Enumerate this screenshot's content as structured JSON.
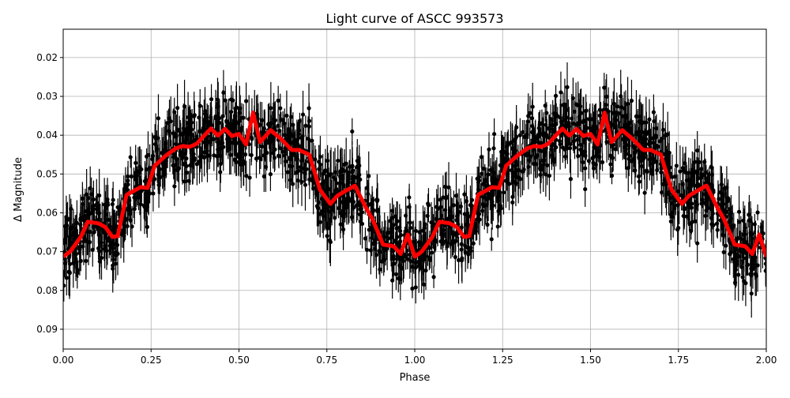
{
  "chart_data": {
    "type": "scatter",
    "title": "Light curve of ASCC 993573",
    "xlabel": "Phase",
    "ylabel": "Δ Magnitude",
    "xlim": [
      0,
      2
    ],
    "ylim": [
      0.0127,
      0.0951
    ],
    "y_inverted": true,
    "grid": true,
    "xticks": [
      "0.00",
      "0.25",
      "0.50",
      "0.75",
      "1.00",
      "1.25",
      "1.50",
      "1.75",
      "2.00"
    ],
    "yticks": [
      "0.02",
      "0.03",
      "0.04",
      "0.05",
      "0.06",
      "0.07",
      "0.08",
      "0.09"
    ],
    "colors": {
      "points": "#000000",
      "model": "#ff0000",
      "grid": "#b0b0b0"
    },
    "series": [
      {
        "kind": "scatter-with-errorbars",
        "color": "#000000",
        "scatter_spread": 0.02
      },
      {
        "kind": "line",
        "color": "#ff0000",
        "period": 1,
        "phase": [
          0,
          0.02,
          0.05,
          0.07,
          0.1,
          0.12,
          0.14,
          0.155,
          0.18,
          0.2,
          0.22,
          0.24,
          0.26,
          0.29,
          0.32,
          0.34,
          0.36,
          0.38,
          0.4,
          0.42,
          0.44,
          0.46,
          0.48,
          0.5,
          0.52,
          0.54,
          0.56,
          0.59,
          0.62,
          0.65,
          0.67,
          0.7,
          0.73,
          0.76,
          0.78,
          0.81,
          0.83,
          0.86,
          0.88,
          0.91,
          0.94,
          0.96,
          0.98,
          1.0
        ],
        "magnitude": [
          0.0713,
          0.07,
          0.0662,
          0.0623,
          0.0627,
          0.0637,
          0.0662,
          0.066,
          0.0554,
          0.0544,
          0.0534,
          0.0536,
          0.0479,
          0.0454,
          0.0434,
          0.0428,
          0.043,
          0.0422,
          0.0402,
          0.0383,
          0.0401,
          0.0384,
          0.0402,
          0.0397,
          0.0424,
          0.0342,
          0.0418,
          0.0387,
          0.041,
          0.0438,
          0.0438,
          0.045,
          0.054,
          0.0577,
          0.0556,
          0.054,
          0.053,
          0.0585,
          0.0617,
          0.0682,
          0.0686,
          0.0706,
          0.0656,
          0.0713
        ]
      }
    ]
  }
}
